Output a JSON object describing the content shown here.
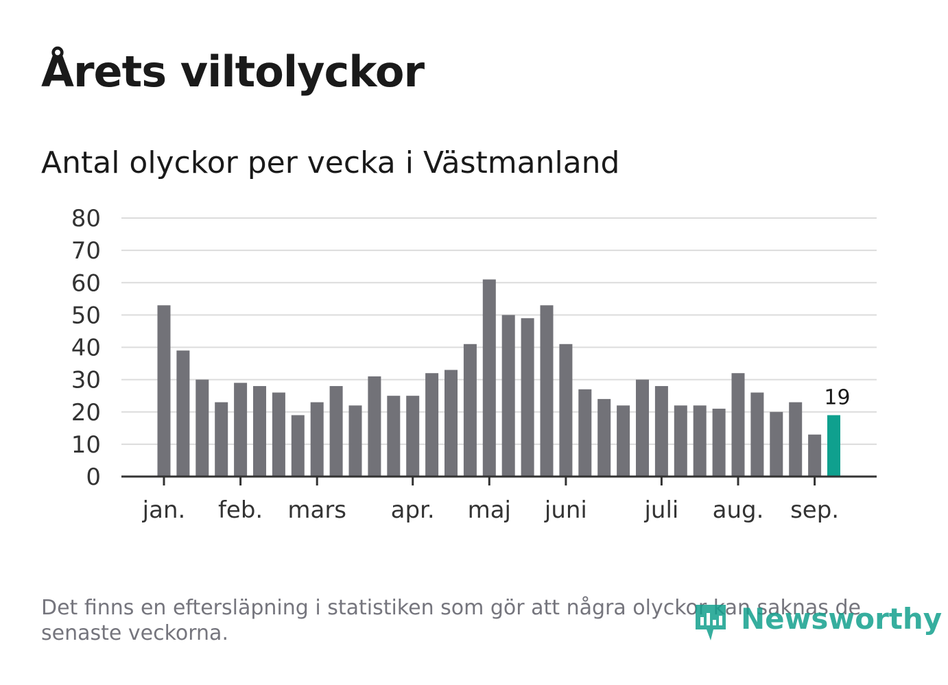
{
  "title": "Årets viltolyckor",
  "subtitle": "Antal olyckor per vecka i Västmanland",
  "footnote": "Det finns en eftersläpning i statistiken som gör att några olyckor kan saknas de senaste veckorna.",
  "logo": {
    "text": "Newsworthy",
    "icon": "newsworthy-chart-bubble-icon",
    "color": "#14a08e"
  },
  "colors": {
    "bar": "#727278",
    "highlight": "#0fa08e",
    "grid": "#dcdcdc",
    "axis": "#333333",
    "text": "#333333"
  },
  "chart_data": {
    "type": "bar",
    "title": "Årets viltolyckor",
    "subtitle": "Antal olyckor per vecka i Västmanland",
    "xlabel": "",
    "ylabel": "",
    "ylim": [
      0,
      80
    ],
    "yticks": [
      "0",
      "10",
      "20",
      "30",
      "40",
      "50",
      "60",
      "70",
      "80"
    ],
    "grid": true,
    "legend": "none",
    "month_ticks": [
      {
        "label": "jan.",
        "week": 1
      },
      {
        "label": "feb.",
        "week": 5
      },
      {
        "label": "mars",
        "week": 9
      },
      {
        "label": "apr.",
        "week": 14
      },
      {
        "label": "maj",
        "week": 18
      },
      {
        "label": "juni",
        "week": 22
      },
      {
        "label": "juli",
        "week": 27
      },
      {
        "label": "aug.",
        "week": 31
      },
      {
        "label": "sep.",
        "week": 35
      }
    ],
    "weeks": [
      1,
      2,
      3,
      4,
      5,
      6,
      7,
      8,
      9,
      10,
      11,
      12,
      13,
      14,
      15,
      16,
      17,
      18,
      19,
      20,
      21,
      22,
      23,
      24,
      25,
      26,
      27,
      28,
      29,
      30,
      31,
      32,
      33,
      34,
      35,
      36
    ],
    "values": [
      53,
      39,
      30,
      23,
      29,
      28,
      26,
      19,
      23,
      28,
      22,
      31,
      25,
      25,
      32,
      33,
      41,
      61,
      50,
      49,
      53,
      41,
      27,
      24,
      22,
      30,
      28,
      22,
      22,
      21,
      32,
      26,
      20,
      23,
      13,
      19
    ],
    "highlight_index": 35,
    "highlight_label": "19"
  }
}
